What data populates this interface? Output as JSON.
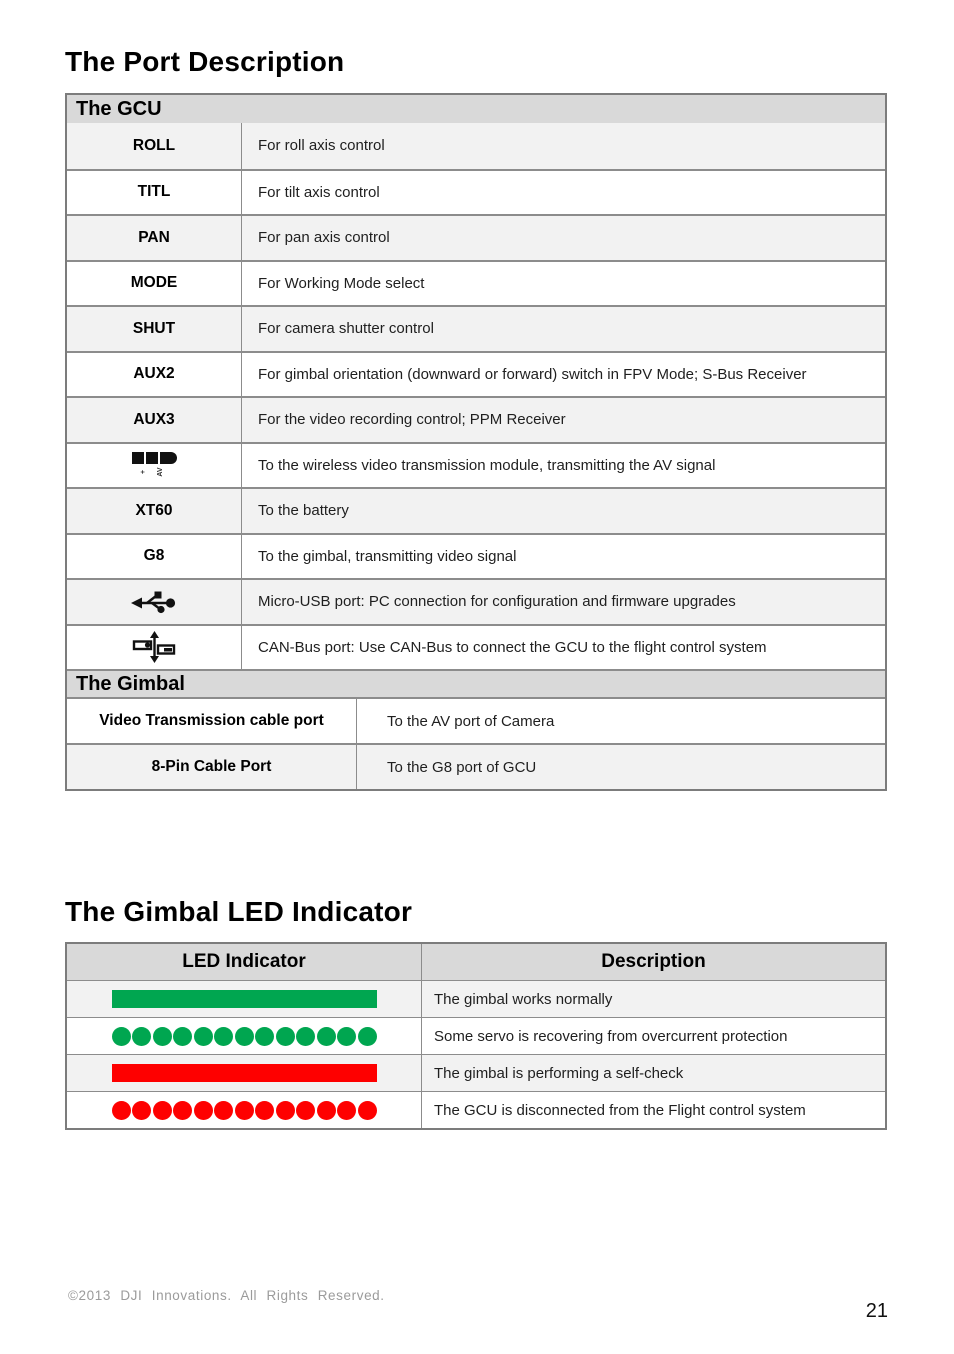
{
  "page": {
    "title_ports": "The Port Description",
    "title_led": "The Gimbal LED Indicator",
    "footer": "©2013 DJI Innovations. All Rights Reserved.",
    "page_number": "21"
  },
  "colors": {
    "green": "#00a650",
    "red": "#fe0000",
    "header_bg": "#d9d9d9",
    "row_alt_bg": "#f2f2f2",
    "border": "#8c8c8c"
  },
  "gcu": {
    "header": "The GCU",
    "rows": [
      {
        "label": "ROLL",
        "desc": "For roll axis control"
      },
      {
        "label": "TITL",
        "desc": "For tilt axis control"
      },
      {
        "label": "PAN",
        "desc": "For pan axis control"
      },
      {
        "label": "MODE",
        "desc": "For Working Mode select"
      },
      {
        "label": "SHUT",
        "desc": "For camera shutter control"
      },
      {
        "label": "AUX2",
        "desc": "For gimbal orientation (downward or forward) switch in FPV Mode; S-Bus Receiver"
      },
      {
        "label": "AUX3",
        "desc": "For the video recording control; PPM Receiver"
      },
      {
        "label": "",
        "icon": "av-out-connector",
        "desc": "To the wireless video transmission module, transmitting the AV signal"
      },
      {
        "label": "XT60",
        "desc": "To the battery"
      },
      {
        "label": "G8",
        "desc": "To the gimbal, transmitting video signal"
      },
      {
        "label": "",
        "icon": "micro-usb-port",
        "desc": "Micro-USB port: PC connection for configuration and firmware upgrades"
      },
      {
        "label": "",
        "icon": "can-bus-port",
        "desc": "CAN-Bus port: Use CAN-Bus to connect the GCU to the flight control system"
      }
    ],
    "av_icon_sub_labels": {
      "plus": "+",
      "av": "AV"
    }
  },
  "gimbal": {
    "header": "The Gimbal",
    "rows": [
      {
        "label": "Video Transmission cable port",
        "desc": "To the AV port of Camera"
      },
      {
        "label": "8-Pin Cable Port",
        "desc": "To the G8 port of GCU"
      }
    ]
  },
  "led": {
    "col1": "LED Indicator",
    "col2": "Description",
    "dot_count": 13,
    "rows": [
      {
        "indicator": "solid-green-bar",
        "desc": "The gimbal works normally"
      },
      {
        "indicator": "blinking-green-dots",
        "desc": "Some servo is recovering from overcurrent protection"
      },
      {
        "indicator": "solid-red-bar",
        "desc": "The gimbal is performing a self-check"
      },
      {
        "indicator": "blinking-red-dots",
        "desc": "The GCU is disconnected from the Flight control system"
      }
    ]
  }
}
